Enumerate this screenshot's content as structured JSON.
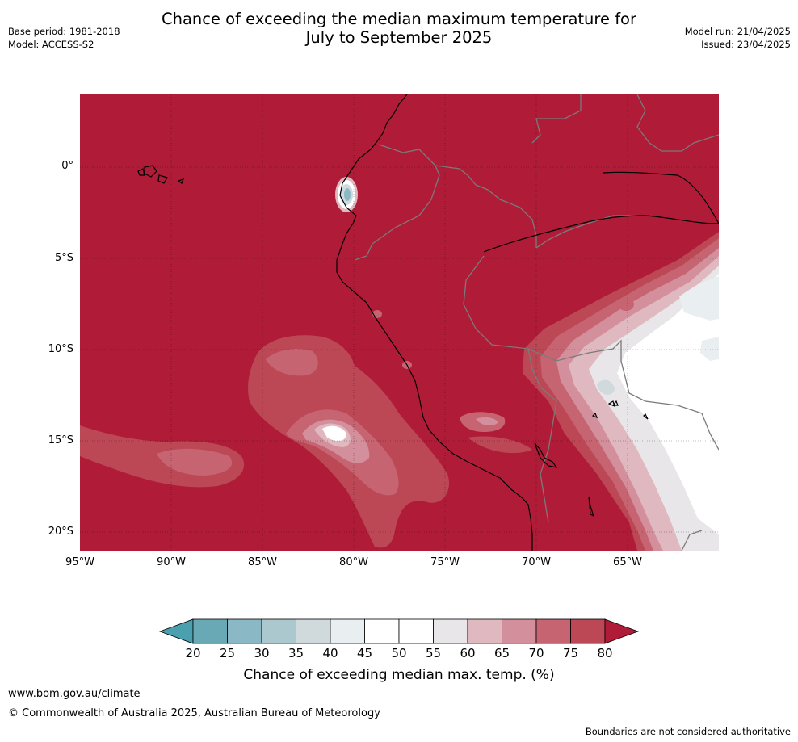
{
  "header": {
    "title_line1": "Chance of exceeding the median maximum temperature for",
    "title_line2": "July to September 2025",
    "base_period": "Base period: 1981-2018",
    "model": "Model: ACCESS-S2",
    "model_run": "Model run: 21/04/2025",
    "issued": "Issued: 23/04/2025"
  },
  "map": {
    "lat_labels": [
      "0°",
      "5°S",
      "10°S",
      "15°S",
      "20°S"
    ],
    "lon_labels": [
      "95°W",
      "90°W",
      "85°W",
      "80°W",
      "75°W",
      "70°W",
      "65°W"
    ],
    "lon_range": [
      -95,
      -60
    ],
    "lat_range": [
      -21,
      4
    ],
    "background_probability": 80
  },
  "colorbar": {
    "ticks": [
      "20",
      "25",
      "30",
      "35",
      "40",
      "45",
      "50",
      "55",
      "60",
      "65",
      "70",
      "75",
      "80"
    ],
    "colors": [
      "#69a9b6",
      "#8ab8c4",
      "#aac8ce",
      "#d0d9dc",
      "#e9eff1",
      "#ffffff",
      "#ffffff",
      "#e8e6e8",
      "#e0b8c0",
      "#d38f9b",
      "#c66472",
      "#bc4856"
    ],
    "under_color": "#4aa0ae",
    "over_color": "#b01c38",
    "label": "Chance of exceeding median max. temp. (%)"
  },
  "footer": {
    "url": "www.bom.gov.au/climate",
    "copyright": "© Commonwealth of Australia 2025, Australian Bureau of Meteorology",
    "disclaimer": "Boundaries are not considered authoritative"
  }
}
